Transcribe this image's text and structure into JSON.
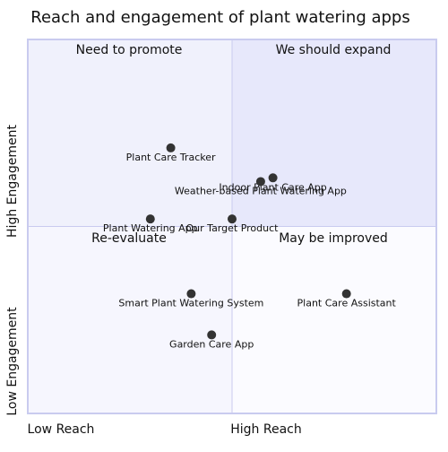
{
  "chart_data": {
    "type": "scatter",
    "title": "Reach and engagement of plant watering apps",
    "x_axis": {
      "low_label": "Low Reach",
      "high_label": "High Reach"
    },
    "y_axis": {
      "low_label": "Low Engagement",
      "high_label": "High Engagement"
    },
    "xlim": [
      0,
      1
    ],
    "ylim": [
      0,
      1
    ],
    "quadrants": {
      "top_right": {
        "label": "We should expand",
        "color": "#e7e8fb"
      },
      "top_left": {
        "label": "Need to promote",
        "color": "#f0f1fc"
      },
      "bottom_left": {
        "label": "Re-evaluate",
        "color": "#f6f6fe"
      },
      "bottom_right": {
        "label": "May be improved",
        "color": "#fbfbff"
      }
    },
    "border_color": "#c9cbef",
    "point_color": "#333333",
    "points": [
      {
        "name": "Plant Care Tracker",
        "x": 0.35,
        "y": 0.71
      },
      {
        "name": "Indoor Plant Care App",
        "x": 0.6,
        "y": 0.63
      },
      {
        "name": "Weather-based Plant Watering App",
        "x": 0.57,
        "y": 0.62
      },
      {
        "name": "Plant Watering App",
        "x": 0.3,
        "y": 0.52
      },
      {
        "name": "Our Target Product",
        "x": 0.5,
        "y": 0.52
      },
      {
        "name": "Smart Plant Watering System",
        "x": 0.4,
        "y": 0.32
      },
      {
        "name": "Plant Care Assistant",
        "x": 0.78,
        "y": 0.32
      },
      {
        "name": "Garden Care App",
        "x": 0.45,
        "y": 0.21
      }
    ]
  }
}
